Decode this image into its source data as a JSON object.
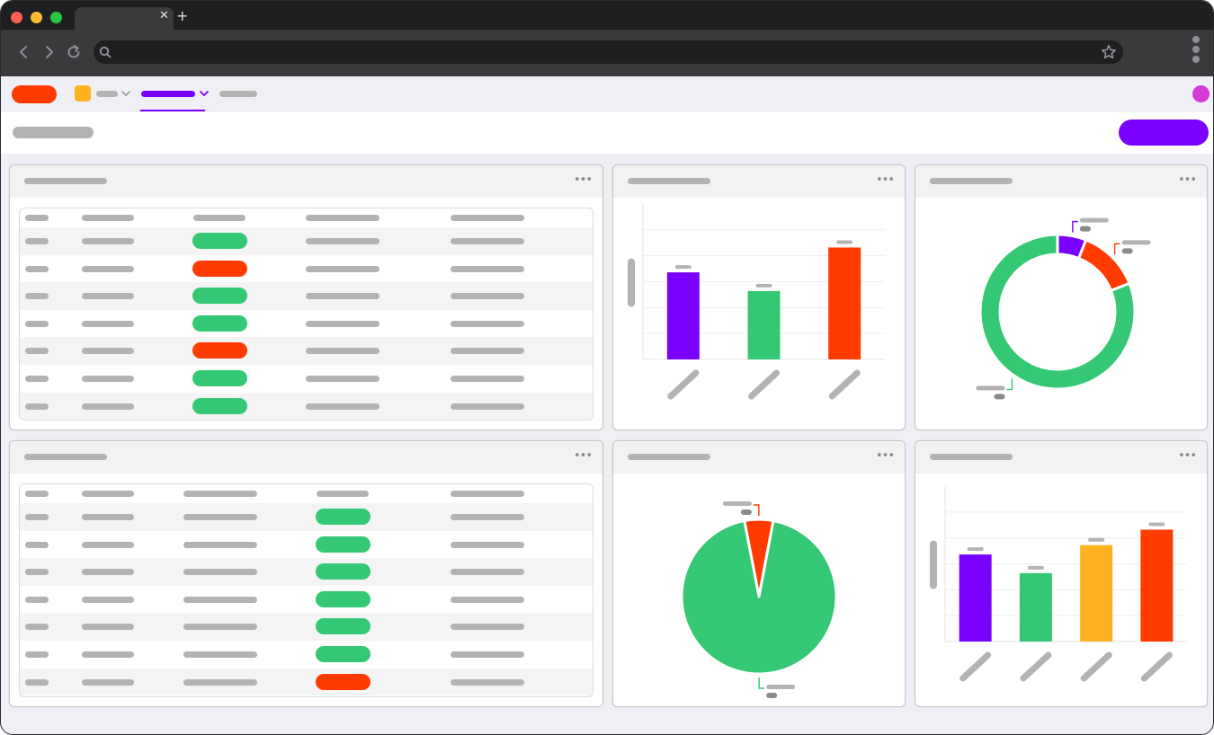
{
  "browser": {
    "traffic_colors": [
      "#ff5f57",
      "#febc2e",
      "#28c840"
    ],
    "tab_close": "✕",
    "tab_new": "+"
  },
  "app": {
    "accent": "#7a00ff",
    "logo_color": "#ff3b00",
    "nav_icon_color": "#ffb21f",
    "avatar_color": "#d63ad8"
  },
  "cards": {
    "menu_glyph": "•••"
  },
  "tables": {
    "status_colors": {
      "ok": "#34c874",
      "error": "#ff3b00"
    },
    "table1_status": [
      "ok",
      "error",
      "ok",
      "ok",
      "error",
      "ok",
      "ok"
    ],
    "table2_status": [
      "ok",
      "ok",
      "ok",
      "ok",
      "ok",
      "ok",
      "error"
    ]
  },
  "chart_data": [
    {
      "type": "bar",
      "categories": [
        "",
        "",
        ""
      ],
      "values": [
        56,
        44,
        72
      ],
      "colors": [
        "#7a00ff",
        "#34c874",
        "#ff3b00"
      ],
      "ylim": [
        0,
        100
      ],
      "grid": true
    },
    {
      "type": "pie",
      "donut": true,
      "values": [
        6,
        13,
        81
      ],
      "colors": [
        "#7a00ff",
        "#ff3b00",
        "#34c874"
      ]
    },
    {
      "type": "pie",
      "donut": false,
      "values": [
        6,
        94
      ],
      "colors": [
        "#ff3b00",
        "#34c874"
      ]
    },
    {
      "type": "bar",
      "categories": [
        "",
        "",
        "",
        ""
      ],
      "values": [
        56,
        44,
        62,
        72
      ],
      "colors": [
        "#7a00ff",
        "#34c874",
        "#ffb21f",
        "#ff3b00"
      ],
      "ylim": [
        0,
        100
      ],
      "grid": true
    }
  ]
}
